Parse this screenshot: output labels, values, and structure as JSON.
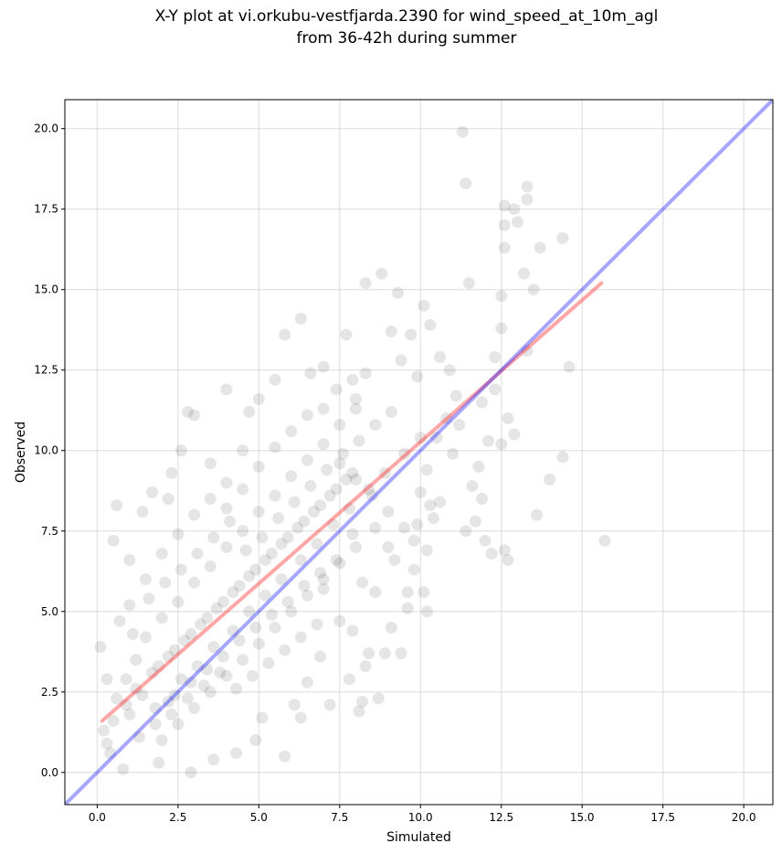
{
  "title": {
    "line1": "X-Y plot at vi.orkubu-vestfjarda.2390 for wind_speed_at_10m_agl",
    "line2": "from 36-42h during summer"
  },
  "chart_data": {
    "type": "scatter",
    "xlabel": "Simulated",
    "ylabel": "Observed",
    "xlim": [
      -1.0,
      20.9
    ],
    "ylim": [
      -1.0,
      20.9
    ],
    "xticks": [
      "0.0",
      "2.5",
      "5.0",
      "7.5",
      "10.0",
      "12.5",
      "15.0",
      "17.5",
      "20.0"
    ],
    "yticks": [
      "0.0",
      "2.5",
      "5.0",
      "7.5",
      "10.0",
      "12.5",
      "15.0",
      "17.5",
      "20.0"
    ],
    "grid": true,
    "point_color": "#000000",
    "point_alpha": 0.1,
    "fit_line": {
      "color": "#ff0000",
      "alpha": 0.35,
      "x": [
        0.15,
        15.6
      ],
      "y": [
        1.6,
        15.2
      ]
    },
    "identity_line": {
      "color": "#0000ff",
      "alpha": 0.35,
      "x": [
        -1.0,
        20.9
      ],
      "y": [
        -1.0,
        20.9
      ]
    },
    "points": [
      [
        11.3,
        19.9
      ],
      [
        11.4,
        18.3
      ],
      [
        13.3,
        18.2
      ],
      [
        13.3,
        17.8
      ],
      [
        12.9,
        17.5
      ],
      [
        13.0,
        17.1
      ],
      [
        12.6,
        17.6
      ],
      [
        12.6,
        17.0
      ],
      [
        12.6,
        16.3
      ],
      [
        13.7,
        16.3
      ],
      [
        14.4,
        16.6
      ],
      [
        11.5,
        15.2
      ],
      [
        13.2,
        15.5
      ],
      [
        13.5,
        15.0
      ],
      [
        12.5,
        14.8
      ],
      [
        15.7,
        7.2
      ],
      [
        14.6,
        12.6
      ],
      [
        14.4,
        9.8
      ],
      [
        14.0,
        9.1
      ],
      [
        13.6,
        8.0
      ],
      [
        12.7,
        6.6
      ],
      [
        12.6,
        6.9
      ],
      [
        12.2,
        6.8
      ],
      [
        12.0,
        7.2
      ],
      [
        11.7,
        7.8
      ],
      [
        11.4,
        7.5
      ],
      [
        11.9,
        8.5
      ],
      [
        12.5,
        13.8
      ],
      [
        12.3,
        12.9
      ],
      [
        13.3,
        13.1
      ],
      [
        12.7,
        11.0
      ],
      [
        12.9,
        10.5
      ],
      [
        12.5,
        10.2
      ],
      [
        12.1,
        10.3
      ],
      [
        11.8,
        9.5
      ],
      [
        10.1,
        14.5
      ],
      [
        10.3,
        13.9
      ],
      [
        9.7,
        13.6
      ],
      [
        9.1,
        13.7
      ],
      [
        8.8,
        15.5
      ],
      [
        9.3,
        14.9
      ],
      [
        8.3,
        15.2
      ],
      [
        7.7,
        13.6
      ],
      [
        6.3,
        14.1
      ],
      [
        5.8,
        13.6
      ],
      [
        7.0,
        12.6
      ],
      [
        10.6,
        12.9
      ],
      [
        10.9,
        12.5
      ],
      [
        11.1,
        11.7
      ],
      [
        10.8,
        11.0
      ],
      [
        10.5,
        10.4
      ],
      [
        11.0,
        9.9
      ],
      [
        10.2,
        9.4
      ],
      [
        10.0,
        8.7
      ],
      [
        10.3,
        8.3
      ],
      [
        10.4,
        7.9
      ],
      [
        9.9,
        7.7
      ],
      [
        10.2,
        6.9
      ],
      [
        10.1,
        5.6
      ],
      [
        10.2,
        5.0
      ],
      [
        9.6,
        5.6
      ],
      [
        9.8,
        6.3
      ],
      [
        9.2,
        6.6
      ],
      [
        9.0,
        7.0
      ],
      [
        8.6,
        7.6
      ],
      [
        9.1,
        4.5
      ],
      [
        9.4,
        3.7
      ],
      [
        8.9,
        3.7
      ],
      [
        8.4,
        3.7
      ],
      [
        8.3,
        3.3
      ],
      [
        8.7,
        2.3
      ],
      [
        8.2,
        2.2
      ],
      [
        8.1,
        1.9
      ],
      [
        7.8,
        2.9
      ],
      [
        7.9,
        4.4
      ],
      [
        7.5,
        4.7
      ],
      [
        7.0,
        5.7
      ],
      [
        6.5,
        2.8
      ],
      [
        6.1,
        2.1
      ],
      [
        6.3,
        1.7
      ],
      [
        7.2,
        2.1
      ],
      [
        6.9,
        3.6
      ],
      [
        5.8,
        0.5
      ],
      [
        4.9,
        1.0
      ],
      [
        5.1,
        1.7
      ],
      [
        4.3,
        0.6
      ],
      [
        3.6,
        0.4
      ],
      [
        2.9,
        0.0
      ],
      [
        1.9,
        0.3
      ],
      [
        0.8,
        0.1
      ],
      [
        0.4,
        0.6
      ],
      [
        0.6,
        8.3
      ],
      [
        1.4,
        8.1
      ],
      [
        0.5,
        7.2
      ],
      [
        1.0,
        6.6
      ],
      [
        2.3,
        9.3
      ],
      [
        2.6,
        10.0
      ],
      [
        3.0,
        11.1
      ],
      [
        2.8,
        11.2
      ],
      [
        4.0,
        11.9
      ],
      [
        4.7,
        11.2
      ],
      [
        5.0,
        11.6
      ],
      [
        5.5,
        12.2
      ],
      [
        6.6,
        12.4
      ],
      [
        7.4,
        11.9
      ],
      [
        7.9,
        12.2
      ],
      [
        8.3,
        12.4
      ],
      [
        8.0,
        11.6
      ],
      [
        9.4,
        12.8
      ],
      [
        9.9,
        12.3
      ],
      [
        3.5,
        9.6
      ],
      [
        4.5,
        10.0
      ],
      [
        4.0,
        9.0
      ],
      [
        1.7,
        8.7
      ],
      [
        2.2,
        8.5
      ],
      [
        8.2,
        5.9
      ],
      [
        8.6,
        5.6
      ],
      [
        9.6,
        5.1
      ],
      [
        9.8,
        7.2
      ],
      [
        10.6,
        8.4
      ],
      [
        11.6,
        8.9
      ],
      [
        12.3,
        11.9
      ],
      [
        11.9,
        11.5
      ],
      [
        11.2,
        10.8
      ],
      [
        0.9,
        2.9
      ],
      [
        0.3,
        2.9
      ],
      [
        0.1,
        3.9
      ],
      [
        0.2,
        1.3
      ],
      [
        0.3,
        0.9
      ],
      [
        0.6,
        2.3
      ],
      [
        1.0,
        1.8
      ],
      [
        1.2,
        2.6
      ],
      [
        1.8,
        1.5
      ],
      [
        2.2,
        2.2
      ],
      [
        2.6,
        2.9
      ],
      [
        3.1,
        3.3
      ],
      [
        3.6,
        3.9
      ],
      [
        4.2,
        4.4
      ],
      [
        4.7,
        5.0
      ],
      [
        5.2,
        5.5
      ],
      [
        5.7,
        6.0
      ],
      [
        6.3,
        6.6
      ],
      [
        6.8,
        7.1
      ],
      [
        7.3,
        7.7
      ],
      [
        7.8,
        8.2
      ],
      [
        8.4,
        8.8
      ],
      [
        8.9,
        9.3
      ],
      [
        9.5,
        9.9
      ],
      [
        10.0,
        10.4
      ],
      [
        1.5,
        4.2
      ],
      [
        2.0,
        4.8
      ],
      [
        2.5,
        5.3
      ],
      [
        3.0,
        5.9
      ],
      [
        3.5,
        6.4
      ],
      [
        4.0,
        7.0
      ],
      [
        4.5,
        7.5
      ],
      [
        5.0,
        8.1
      ],
      [
        5.5,
        8.6
      ],
      [
        6.0,
        9.2
      ],
      [
        6.5,
        9.7
      ],
      [
        7.0,
        10.2
      ],
      [
        7.5,
        10.8
      ],
      [
        8.0,
        11.3
      ],
      [
        1.0,
        5.2
      ],
      [
        1.5,
        6.0
      ],
      [
        2.0,
        6.8
      ],
      [
        2.5,
        7.4
      ],
      [
        3.0,
        8.0
      ],
      [
        3.5,
        8.5
      ],
      [
        4.0,
        8.2
      ],
      [
        4.5,
        8.8
      ],
      [
        5.0,
        9.5
      ],
      [
        5.5,
        10.1
      ],
      [
        6.0,
        10.6
      ],
      [
        6.5,
        11.1
      ],
      [
        7.0,
        11.3
      ],
      [
        7.5,
        9.6
      ],
      [
        8.0,
        9.1
      ],
      [
        8.5,
        8.6
      ],
      [
        9.0,
        8.1
      ],
      [
        9.5,
        7.6
      ],
      [
        2.0,
        1.0
      ],
      [
        2.5,
        1.5
      ],
      [
        3.0,
        2.0
      ],
      [
        3.5,
        2.5
      ],
      [
        4.0,
        3.0
      ],
      [
        4.5,
        3.5
      ],
      [
        5.0,
        4.0
      ],
      [
        5.5,
        4.5
      ],
      [
        6.0,
        5.0
      ],
      [
        6.5,
        5.5
      ],
      [
        7.0,
        6.0
      ],
      [
        7.5,
        6.5
      ],
      [
        8.0,
        7.0
      ],
      [
        1.2,
        3.5
      ],
      [
        1.7,
        3.1
      ],
      [
        2.2,
        3.6
      ],
      [
        2.7,
        4.1
      ],
      [
        3.2,
        4.6
      ],
      [
        3.7,
        5.1
      ],
      [
        4.2,
        5.6
      ],
      [
        4.7,
        6.1
      ],
      [
        5.2,
        6.6
      ],
      [
        5.7,
        7.1
      ],
      [
        6.2,
        7.6
      ],
      [
        6.7,
        8.1
      ],
      [
        7.2,
        8.6
      ],
      [
        7.7,
        9.1
      ],
      [
        0.7,
        4.7
      ],
      [
        1.1,
        4.3
      ],
      [
        1.6,
        5.4
      ],
      [
        2.1,
        5.9
      ],
      [
        2.6,
        6.3
      ],
      [
        3.1,
        6.8
      ],
      [
        3.6,
        7.3
      ],
      [
        4.1,
        7.8
      ],
      [
        4.6,
        6.9
      ],
      [
        5.1,
        7.3
      ],
      [
        5.6,
        7.9
      ],
      [
        6.1,
        8.4
      ],
      [
        6.6,
        8.9
      ],
      [
        7.1,
        9.4
      ],
      [
        7.6,
        9.9
      ],
      [
        8.1,
        10.3
      ],
      [
        8.6,
        10.8
      ],
      [
        9.1,
        11.2
      ],
      [
        2.4,
        2.4
      ],
      [
        2.9,
        2.8
      ],
      [
        3.4,
        3.2
      ],
      [
        3.9,
        3.6
      ],
      [
        4.4,
        4.1
      ],
      [
        4.9,
        4.5
      ],
      [
        5.4,
        4.9
      ],
      [
        5.9,
        5.3
      ],
      [
        6.4,
        5.8
      ],
      [
        6.9,
        6.2
      ],
      [
        7.4,
        6.6
      ],
      [
        7.9,
        7.4
      ],
      [
        1.3,
        1.1
      ],
      [
        1.8,
        2.0
      ],
      [
        2.3,
        1.8
      ],
      [
        2.8,
        2.3
      ],
      [
        3.3,
        2.7
      ],
      [
        3.8,
        3.1
      ],
      [
        4.3,
        2.6
      ],
      [
        4.8,
        3.0
      ],
      [
        5.3,
        3.4
      ],
      [
        5.8,
        3.8
      ],
      [
        6.3,
        4.2
      ],
      [
        6.8,
        4.6
      ],
      [
        0.5,
        1.6
      ],
      [
        0.9,
        2.1
      ],
      [
        1.4,
        2.4
      ],
      [
        1.9,
        3.3
      ],
      [
        2.4,
        3.8
      ],
      [
        2.9,
        4.3
      ],
      [
        3.4,
        4.8
      ],
      [
        3.9,
        5.3
      ],
      [
        4.4,
        5.8
      ],
      [
        4.9,
        6.3
      ],
      [
        5.4,
        6.8
      ],
      [
        5.9,
        7.3
      ],
      [
        6.4,
        7.8
      ],
      [
        6.9,
        8.3
      ],
      [
        7.4,
        8.8
      ],
      [
        7.9,
        9.3
      ]
    ]
  }
}
